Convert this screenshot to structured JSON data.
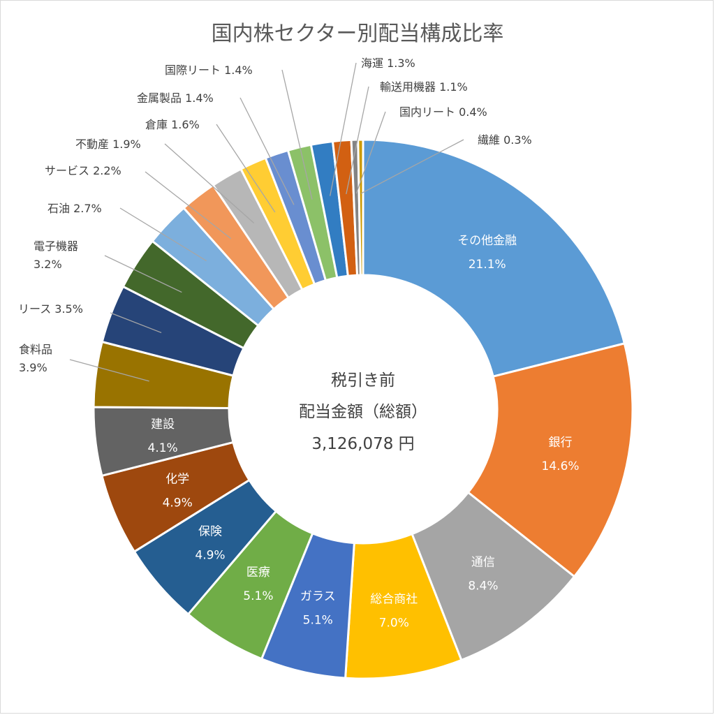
{
  "chart_data": {
    "type": "pie",
    "title": "国内株セクター別配当構成比率",
    "center": {
      "line1": "税引き前",
      "line2": "配当金額（総額）",
      "line3": "3,126,078 円"
    },
    "slices": [
      {
        "name": "その他金融",
        "value": 21.1,
        "label": "21.1%",
        "color": "#5b9bd5",
        "inside": true
      },
      {
        "name": "銀行",
        "value": 14.6,
        "label": "14.6%",
        "color": "#ed7d31",
        "inside": true
      },
      {
        "name": "通信",
        "value": 8.4,
        "label": "8.4%",
        "color": "#a5a5a5",
        "inside": true
      },
      {
        "name": "総合商社",
        "value": 7.0,
        "label": "7.0%",
        "color": "#ffc000",
        "inside": true
      },
      {
        "name": "ガラス",
        "value": 5.1,
        "label": "5.1%",
        "color": "#4472c4",
        "inside": true
      },
      {
        "name": "医療",
        "value": 5.1,
        "label": "5.1%",
        "color": "#70ad47",
        "inside": true
      },
      {
        "name": "保険",
        "value": 4.9,
        "label": "4.9%",
        "color": "#255e91",
        "inside": true
      },
      {
        "name": "化学",
        "value": 4.9,
        "label": "4.9%",
        "color": "#9e480e",
        "inside": true
      },
      {
        "name": "建設",
        "value": 4.1,
        "label": "4.1%",
        "color": "#636363",
        "inside": true
      },
      {
        "name": "食料品",
        "value": 3.9,
        "label": "3.9%",
        "color": "#997300",
        "inside": false
      },
      {
        "name": "リース",
        "value": 3.5,
        "label": "3.5%",
        "color": "#264478",
        "inside": false
      },
      {
        "name": "電子機器",
        "value": 3.2,
        "label": "3.2%",
        "color": "#43682b",
        "inside": false
      },
      {
        "name": "石油",
        "value": 2.7,
        "label": "2.7%",
        "color": "#7cafdd",
        "inside": false
      },
      {
        "name": "サービス",
        "value": 2.2,
        "label": "2.2%",
        "color": "#f1975a",
        "inside": false
      },
      {
        "name": "不動産",
        "value": 1.9,
        "label": "1.9%",
        "color": "#b7b7b7",
        "inside": false
      },
      {
        "name": "倉庫",
        "value": 1.6,
        "label": "1.6%",
        "color": "#ffcd33",
        "inside": false
      },
      {
        "name": "金属製品",
        "value": 1.4,
        "label": "1.4%",
        "color": "#698ed0",
        "inside": false
      },
      {
        "name": "国際リート",
        "value": 1.4,
        "label": "1.4%",
        "color": "#8cc168",
        "inside": false
      },
      {
        "name": "海運",
        "value": 1.3,
        "label": "1.3%",
        "color": "#327dc2",
        "inside": false
      },
      {
        "name": "輸送用機器",
        "value": 1.1,
        "label": "1.1%",
        "color": "#d26012",
        "inside": false
      },
      {
        "name": "国内リート",
        "value": 0.4,
        "label": "0.4%",
        "color": "#848484",
        "inside": false
      },
      {
        "name": "繊維",
        "value": 0.3,
        "label": "0.3%",
        "color": "#cc9a00",
        "inside": false
      }
    ]
  }
}
